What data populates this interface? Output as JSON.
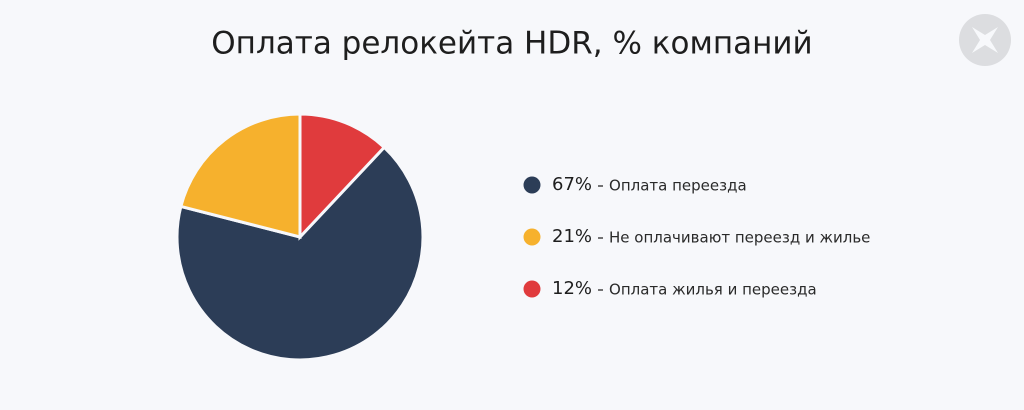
{
  "chart_data": {
    "type": "pie",
    "title": "Оплата релокейта HDR, % компаний",
    "categories": [
      "Оплата переезда",
      "Не оплачивают переезд и жилье",
      "Оплата жилья и переезда"
    ],
    "values": [
      67,
      21,
      12
    ],
    "value_labels": [
      "67%",
      "21%",
      "12%"
    ],
    "colors": [
      "#2c3d57",
      "#f6b12d",
      "#e03b3d"
    ]
  }
}
